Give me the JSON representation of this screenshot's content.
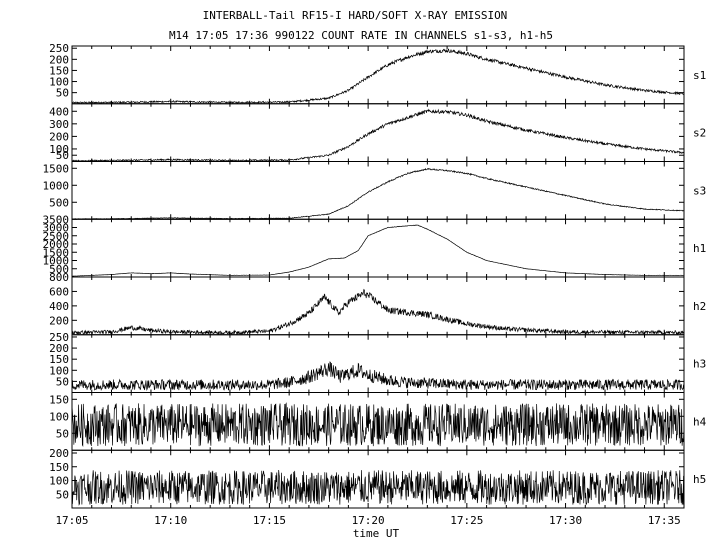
{
  "chart_data": {
    "type": "line",
    "title": "INTERBALL-Tail RF15-I HARD/SOFT X-RAY EMISSION",
    "subtitle": "M14  17:05 17:36 990122  COUNT RATE IN CHANNELS s1-s3, h1-h5",
    "xlabel": "time UT",
    "x_start": "17:05",
    "x_end": "17:36",
    "x_ticks": [
      "17:05",
      "17:10",
      "17:15",
      "17:20",
      "17:25",
      "17:30",
      "17:35"
    ],
    "grid": false,
    "series": [
      {
        "name": "s1",
        "ylim": [
          0,
          260
        ],
        "yticks": [
          "250",
          "200",
          "150",
          "100",
          "50"
        ],
        "noise": 6,
        "x": [
          "17:05",
          "17:08",
          "17:10",
          "17:13",
          "17:16",
          "17:18",
          "17:19",
          "17:20",
          "17:21",
          "17:22",
          "17:23",
          "17:24",
          "17:25",
          "17:26",
          "17:28",
          "17:30",
          "17:32",
          "17:34",
          "17:36"
        ],
        "values": [
          5,
          7,
          10,
          6,
          8,
          25,
          60,
          120,
          175,
          210,
          235,
          240,
          225,
          200,
          160,
          120,
          85,
          60,
          45
        ]
      },
      {
        "name": "s2",
        "ylim": [
          0,
          460
        ],
        "yticks": [
          "400",
          "300",
          "200",
          "100",
          "50"
        ],
        "noise": 10,
        "x": [
          "17:05",
          "17:08",
          "17:10",
          "17:13",
          "17:16",
          "17:18",
          "17:19",
          "17:20",
          "17:21",
          "17:22",
          "17:23",
          "17:24",
          "17:25",
          "17:26",
          "17:28",
          "17:30",
          "17:32",
          "17:34",
          "17:36"
        ],
        "values": [
          5,
          10,
          15,
          8,
          12,
          50,
          120,
          220,
          300,
          350,
          400,
          395,
          370,
          320,
          250,
          190,
          140,
          100,
          70
        ]
      },
      {
        "name": "s3",
        "ylim": [
          0,
          1700
        ],
        "yticks": [
          "1500",
          "1000",
          "500"
        ],
        "noise": 15,
        "x": [
          "17:05",
          "17:08",
          "17:10",
          "17:13",
          "17:16",
          "17:18",
          "17:19",
          "17:20",
          "17:21",
          "17:22",
          "17:23",
          "17:24",
          "17:25",
          "17:26",
          "17:28",
          "17:30",
          "17:32",
          "17:34",
          "17:36"
        ],
        "values": [
          10,
          20,
          40,
          20,
          30,
          150,
          400,
          800,
          1100,
          1350,
          1480,
          1430,
          1350,
          1200,
          950,
          700,
          450,
          300,
          250
        ]
      },
      {
        "name": "h1",
        "ylim": [
          0,
          3500
        ],
        "yticks": [
          "3500",
          "3000",
          "2500",
          "2000",
          "1500",
          "1000",
          "500"
        ],
        "noise": 10,
        "x": [
          "17:05",
          "17:07",
          "17:08",
          "17:09",
          "17:10",
          "17:11",
          "17:13",
          "17:15",
          "17:16",
          "17:17",
          "17:18",
          "17:18.8",
          "17:19.5",
          "17:20",
          "17:21",
          "17:22",
          "17:22.5",
          "17:23",
          "17:24",
          "17:25",
          "17:26",
          "17:28",
          "17:30",
          "17:32",
          "17:34",
          "17:36"
        ],
        "values": [
          50,
          150,
          250,
          200,
          250,
          180,
          100,
          120,
          300,
          600,
          1100,
          1150,
          1600,
          2500,
          3000,
          3100,
          3150,
          2900,
          2300,
          1500,
          1000,
          500,
          250,
          150,
          100,
          100
        ]
      },
      {
        "name": "h2",
        "ylim": [
          0,
          800
        ],
        "yticks": [
          "800",
          "600",
          "400",
          "200"
        ],
        "noise": 40,
        "x": [
          "17:05",
          "17:07",
          "17:08",
          "17:09",
          "17:10",
          "17:13",
          "17:15",
          "17:16",
          "17:17",
          "17:17.8",
          "17:18.5",
          "17:19",
          "17:19.8",
          "17:20.5",
          "17:21",
          "17:22",
          "17:23",
          "17:25",
          "17:27",
          "17:30",
          "17:36"
        ],
        "values": [
          30,
          40,
          100,
          60,
          40,
          30,
          50,
          150,
          300,
          520,
          300,
          450,
          580,
          450,
          340,
          310,
          280,
          150,
          80,
          40,
          30
        ]
      },
      {
        "name": "h3",
        "ylim": [
          0,
          260
        ],
        "yticks": [
          "250",
          "200",
          "150",
          "100",
          "50"
        ],
        "noise": 25,
        "x": [
          "17:05",
          "17:15",
          "17:16",
          "17:17",
          "17:18",
          "17:18.6",
          "17:19",
          "17:19.5",
          "17:20",
          "17:21",
          "17:22",
          "17:25",
          "17:36"
        ],
        "values": [
          35,
          35,
          45,
          70,
          110,
          70,
          85,
          100,
          80,
          55,
          45,
          35,
          35
        ]
      },
      {
        "name": "h4",
        "ylim": [
          0,
          170
        ],
        "yticks": [
          "150",
          "100",
          "50"
        ],
        "noise": 45,
        "x": [
          "17:05",
          "17:36"
        ],
        "values": [
          75,
          75
        ]
      },
      {
        "name": "h5",
        "ylim": [
          0,
          210
        ],
        "yticks": [
          "200",
          "150",
          "100",
          "50"
        ],
        "noise": 45,
        "x": [
          "17:05",
          "17:36"
        ],
        "values": [
          75,
          75
        ]
      }
    ]
  }
}
